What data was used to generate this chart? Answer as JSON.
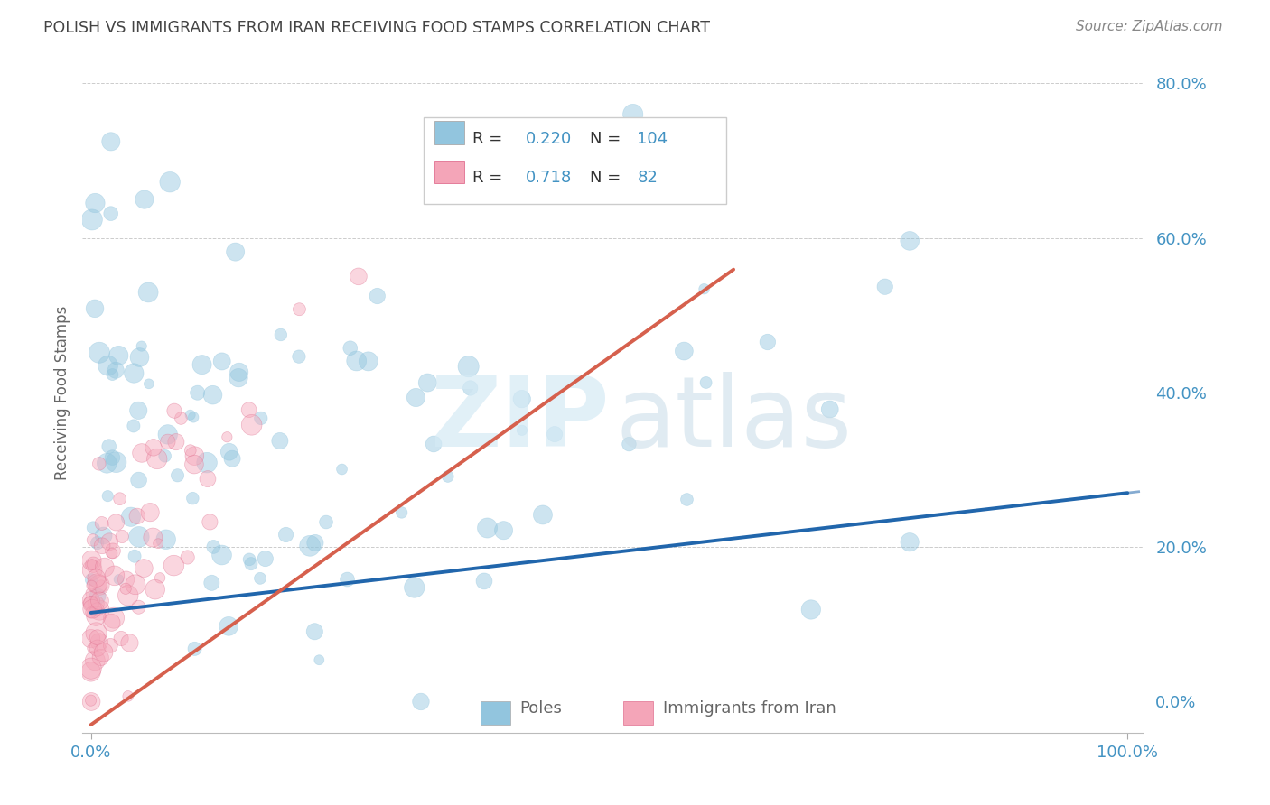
{
  "title": "POLISH VS IMMIGRANTS FROM IRAN RECEIVING FOOD STAMPS CORRELATION CHART",
  "source": "Source: ZipAtlas.com",
  "ylabel": "Receiving Food Stamps",
  "legend_blue_R": "0.220",
  "legend_blue_N": "104",
  "legend_pink_R": "0.718",
  "legend_pink_N": "82",
  "blue_scatter_color": "#92c5de",
  "pink_scatter_color": "#f4a5b8",
  "blue_line_color": "#2166ac",
  "pink_line_color": "#d6604d",
  "axis_tick_color": "#4393c3",
  "title_color": "#444444",
  "source_color": "#888888",
  "label_color": "#666666",
  "legend_number_color": "#4393c3",
  "grid_color": "#cccccc",
  "background_color": "#ffffff",
  "watermark_color1": "#d5eaf5",
  "watermark_color2": "#c8dce8"
}
